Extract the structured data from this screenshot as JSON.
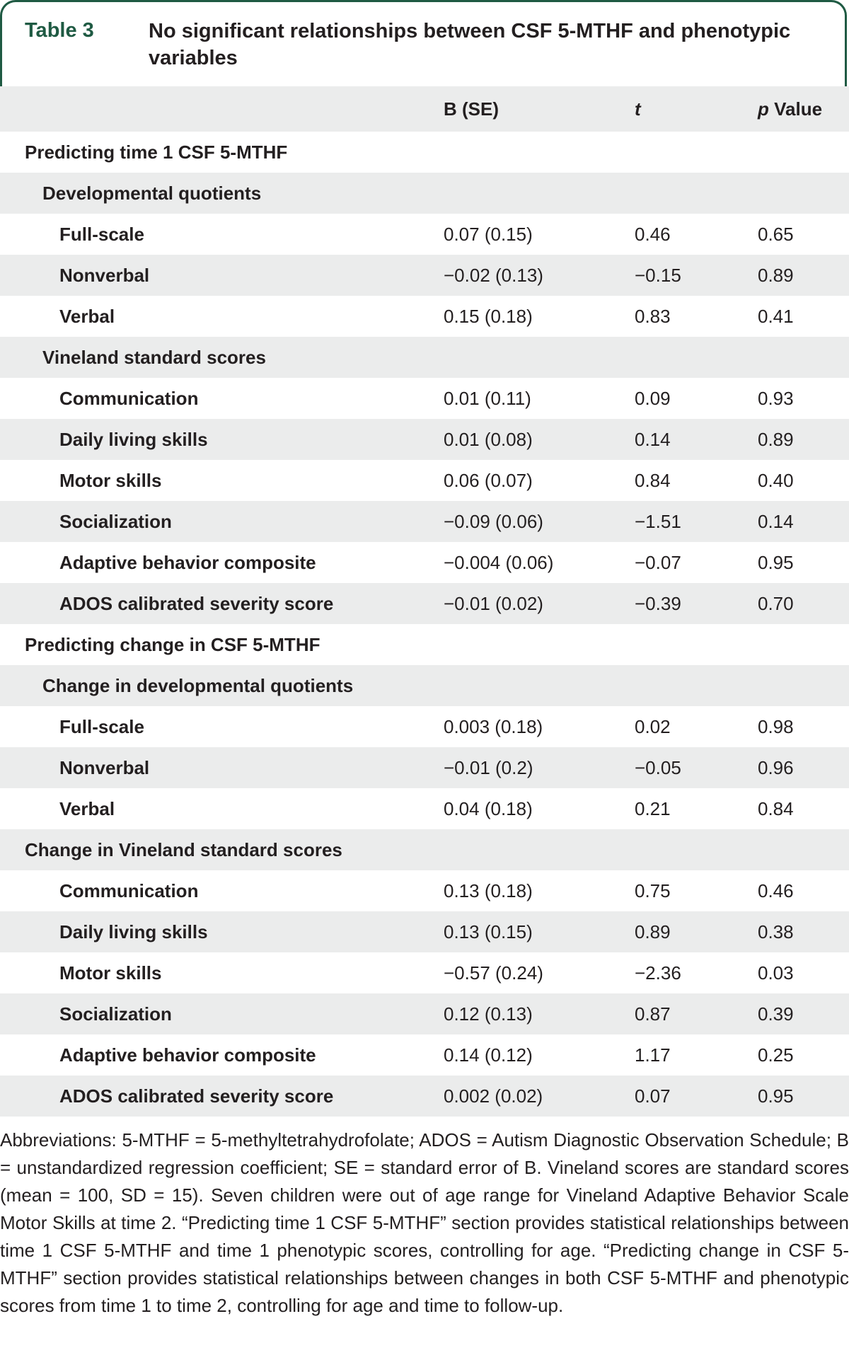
{
  "table": {
    "label": "Table 3",
    "title": "No significant relationships between CSF 5-MTHF and phenotypic variables",
    "columns": [
      "",
      "B (SE)",
      "t",
      "p Value"
    ],
    "rows": [
      {
        "level": 0,
        "label": "Predicting time 1 CSF 5-MTHF",
        "b": "",
        "t": "",
        "p": ""
      },
      {
        "level": 1,
        "label": "Developmental quotients",
        "b": "",
        "t": "",
        "p": ""
      },
      {
        "level": 2,
        "label": "Full-scale",
        "b": "0.07 (0.15)",
        "t": "0.46",
        "p": "0.65"
      },
      {
        "level": 2,
        "label": "Nonverbal",
        "b": "−0.02 (0.13)",
        "t": "−0.15",
        "p": "0.89"
      },
      {
        "level": 2,
        "label": "Verbal",
        "b": "0.15 (0.18)",
        "t": "0.83",
        "p": "0.41"
      },
      {
        "level": 1,
        "label": "Vineland standard scores",
        "b": "",
        "t": "",
        "p": ""
      },
      {
        "level": 2,
        "label": "Communication",
        "b": "0.01 (0.11)",
        "t": "0.09",
        "p": "0.93"
      },
      {
        "level": 2,
        "label": "Daily living skills",
        "b": "0.01 (0.08)",
        "t": "0.14",
        "p": "0.89"
      },
      {
        "level": 2,
        "label": "Motor skills",
        "b": "0.06 (0.07)",
        "t": "0.84",
        "p": "0.40"
      },
      {
        "level": 2,
        "label": "Socialization",
        "b": "−0.09 (0.06)",
        "t": "−1.51",
        "p": "0.14"
      },
      {
        "level": 2,
        "label": "Adaptive behavior composite",
        "b": "−0.004 (0.06)",
        "t": "−0.07",
        "p": "0.95"
      },
      {
        "level": 2,
        "label": "ADOS calibrated severity score",
        "b": "−0.01 (0.02)",
        "t": "−0.39",
        "p": "0.70"
      },
      {
        "level": 0,
        "label": "Predicting change in CSF 5-MTHF",
        "b": "",
        "t": "",
        "p": ""
      },
      {
        "level": 1,
        "label": "Change in developmental quotients",
        "b": "",
        "t": "",
        "p": ""
      },
      {
        "level": 2,
        "label": "Full-scale",
        "b": "0.003 (0.18)",
        "t": "0.02",
        "p": "0.98"
      },
      {
        "level": 2,
        "label": "Nonverbal",
        "b": "−0.01 (0.2)",
        "t": "−0.05",
        "p": "0.96"
      },
      {
        "level": 2,
        "label": "Verbal",
        "b": "0.04 (0.18)",
        "t": "0.21",
        "p": "0.84"
      },
      {
        "level": 0,
        "label": "Change in Vineland standard scores",
        "b": "",
        "t": "",
        "p": ""
      },
      {
        "level": 2,
        "label": "Communication",
        "b": "0.13 (0.18)",
        "t": "0.75",
        "p": "0.46"
      },
      {
        "level": 2,
        "label": "Daily living skills",
        "b": "0.13 (0.15)",
        "t": "0.89",
        "p": "0.38"
      },
      {
        "level": 2,
        "label": "Motor skills",
        "b": "−0.57 (0.24)",
        "t": "−2.36",
        "p": "0.03"
      },
      {
        "level": 2,
        "label": "Socialization",
        "b": "0.12 (0.13)",
        "t": "0.87",
        "p": "0.39"
      },
      {
        "level": 2,
        "label": "Adaptive behavior composite",
        "b": "0.14 (0.12)",
        "t": "1.17",
        "p": "0.25"
      },
      {
        "level": 2,
        "label": "ADOS calibrated severity score",
        "b": "0.002 (0.02)",
        "t": "0.07",
        "p": "0.95"
      }
    ],
    "footnote": "Abbreviations: 5-MTHF = 5-methyltetrahydrofolate; ADOS = Autism Diagnostic Observation Schedule; B = unstandardized regression coefficient; SE = standard error of B. Vineland scores are standard scores (mean = 100, SD = 15). Seven children were out of age range for Vineland Adaptive Behavior Scale Motor Skills at time 2. “Predicting time 1 CSF 5-MTHF” section provides statistical relationships between time 1 CSF 5-MTHF and time 1 phenotypic scores, controlling for age. “Predicting change in CSF 5-MTHF” section provides statistical relationships between changes in both CSF 5-MTHF and phenotypic scores from time 1 to time 2, controlling for age and time to follow-up."
  },
  "colors": {
    "accent": "#1f5a43",
    "stripe": "#ebecec",
    "text": "#231f20"
  }
}
